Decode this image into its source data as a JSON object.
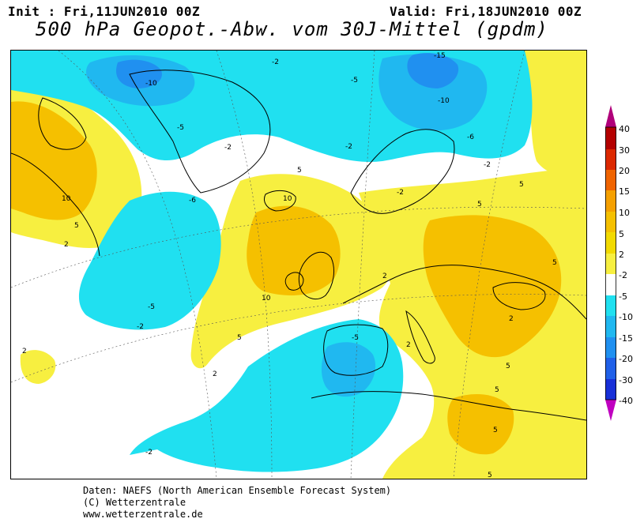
{
  "header": {
    "init": "Init : Fri,11JUN2010 00Z",
    "valid": "Valid: Fri,18JUN2010 00Z",
    "title": "500 hPa Geopot.-Abw. vom 30J-Mittel (gpdm)"
  },
  "colorbar": {
    "levels": [
      "40",
      "30",
      "20",
      "15",
      "10",
      "5",
      "2",
      "-2",
      "-5",
      "-10",
      "-15",
      "-20",
      "-30",
      "-40"
    ],
    "colors": {
      "top_cap": "#b0007a",
      "gt40": "#b40000",
      "30_40": "#dc2800",
      "20_30": "#f06400",
      "15_20": "#f5a000",
      "10_15": "#f5c000",
      "5_10": "#f2da00",
      "2_5": "#f7ef40",
      "neutral": "#ffffff",
      "m5_m2": "#20e0f0",
      "m10_m5": "#20b8f0",
      "m15_m10": "#2090f0",
      "m20_m15": "#2060e8",
      "m30_m20": "#1830d8",
      "m40_m30": "#c000c0",
      "bottom_cap": "#8000a0"
    }
  },
  "map_labels": [
    {
      "text": "-2"
    },
    {
      "text": "-10"
    },
    {
      "text": "-5"
    },
    {
      "text": "-2"
    },
    {
      "text": "-5"
    },
    {
      "text": "-15"
    },
    {
      "text": "-10"
    },
    {
      "text": "-6"
    },
    {
      "text": "-2"
    },
    {
      "text": "-2"
    },
    {
      "text": "-6"
    },
    {
      "text": "5"
    },
    {
      "text": "10"
    },
    {
      "text": "10"
    },
    {
      "text": "5"
    },
    {
      "text": "2"
    },
    {
      "text": "10"
    },
    {
      "text": "5"
    },
    {
      "text": "2"
    },
    {
      "text": "-5"
    },
    {
      "text": "-2"
    },
    {
      "text": "5"
    },
    {
      "text": "-2"
    },
    {
      "text": "-5"
    },
    {
      "text": "2"
    },
    {
      "text": "2"
    },
    {
      "text": "-2"
    },
    {
      "text": "5"
    },
    {
      "text": "5"
    },
    {
      "text": "5"
    },
    {
      "text": "5"
    },
    {
      "text": "2"
    },
    {
      "text": "5"
    },
    {
      "text": "5"
    },
    {
      "text": "2"
    }
  ],
  "footer": {
    "line1": "Daten: NAEFS (North American Ensemble Forecast System)",
    "line2": "(C) Wetterzentrale",
    "line3": "www.wetterzentrale.de"
  }
}
